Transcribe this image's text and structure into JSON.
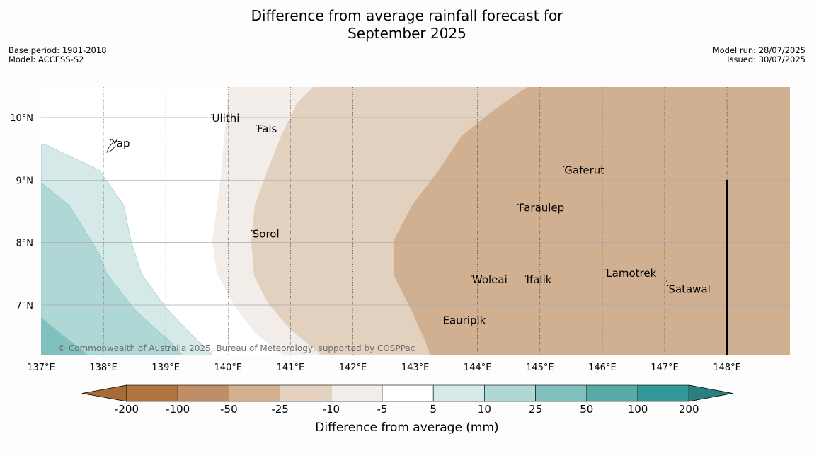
{
  "title": {
    "line1": "Difference from average rainfall forecast for",
    "line2": "September 2025"
  },
  "meta_left": {
    "base_period": "Base period: 1981-2018",
    "model": "Model: ACCESS-S2"
  },
  "meta_right": {
    "model_run": "Model run: 28/07/2025",
    "issued": "Issued: 30/07/2025"
  },
  "map": {
    "lon_range": [
      137,
      149
    ],
    "lat_range": [
      6.2,
      10.5
    ],
    "lon_ticks": [
      "137°E",
      "138°E",
      "139°E",
      "140°E",
      "141°E",
      "142°E",
      "143°E",
      "144°E",
      "145°E",
      "146°E",
      "147°E",
      "148°E"
    ],
    "lat_ticks": [
      "10°N",
      "9°N",
      "8°N",
      "7°N"
    ],
    "places": [
      {
        "name": "Ulithi",
        "lon": 139.73,
        "lat": 9.93
      },
      {
        "name": "Fais",
        "lon": 140.45,
        "lat": 9.76
      },
      {
        "name": "Yap",
        "lon": 138.12,
        "lat": 9.53
      },
      {
        "name": "Gaferut",
        "lon": 145.38,
        "lat": 9.1
      },
      {
        "name": "Faraulep",
        "lon": 144.65,
        "lat": 8.5
      },
      {
        "name": "Sorol",
        "lon": 140.38,
        "lat": 8.08
      },
      {
        "name": "Lamotrek",
        "lon": 146.05,
        "lat": 7.45
      },
      {
        "name": "Woleai",
        "lon": 143.9,
        "lat": 7.35
      },
      {
        "name": "Ifalik",
        "lon": 144.77,
        "lat": 7.35
      },
      {
        "name": "Satawal",
        "lon": 147.05,
        "lat": 7.2
      },
      {
        "name": "Eauripik",
        "lon": 143.43,
        "lat": 6.7
      }
    ],
    "copyright": "© Commonwealth of Australia 2025, Bureau of Meteorology, supported by COSPPac"
  },
  "legend": {
    "unit_label": "Difference from average (mm)",
    "ticks": [
      "-200",
      "-100",
      "-50",
      "-25",
      "-10",
      "-5",
      "5",
      "10",
      "25",
      "50",
      "100",
      "200"
    ],
    "colors": [
      "#a86b37",
      "#b07540",
      "#c08e66",
      "#d3b090",
      "#e4d1c0",
      "#f2ede8",
      "#ffffff",
      "#d5e9e8",
      "#aed7d6",
      "#80c1bf",
      "#57aaa8",
      "#329998",
      "#2b7f7e"
    ]
  }
}
